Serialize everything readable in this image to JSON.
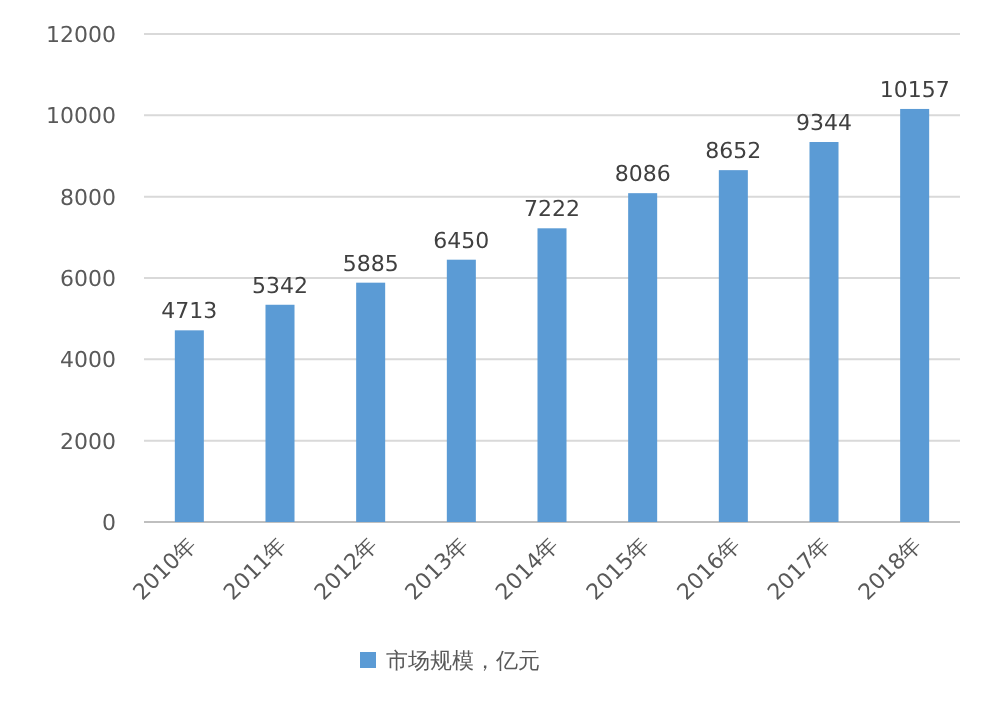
{
  "chart_data": {
    "type": "bar",
    "categories": [
      "2010年",
      "2011年",
      "2012年",
      "2013年",
      "2014年",
      "2015年",
      "2016年",
      "2017年",
      "2018年"
    ],
    "series": [
      {
        "name": "市场规模，亿元",
        "color": "#5b9bd5",
        "values": [
          4713,
          5342,
          5885,
          6450,
          7222,
          8086,
          8652,
          9344,
          10157
        ]
      }
    ],
    "ylim": [
      0,
      12000
    ],
    "yticks": [
      0,
      2000,
      4000,
      6000,
      8000,
      10000,
      12000
    ],
    "grid": "y",
    "data_labels": true,
    "legend": "bottom"
  }
}
